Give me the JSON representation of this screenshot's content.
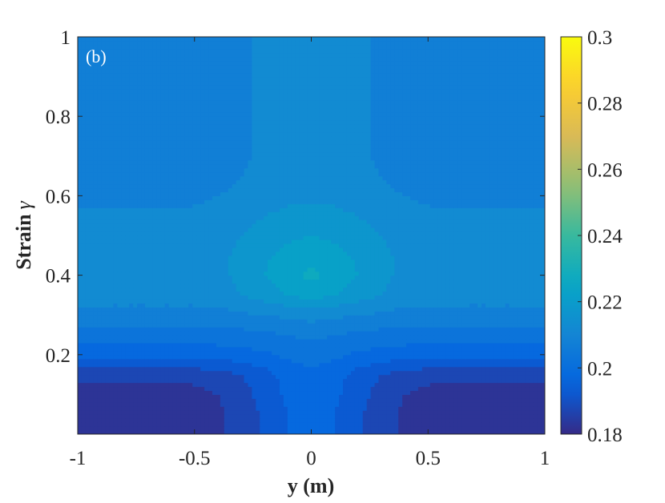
{
  "chart_data": {
    "type": "heatmap",
    "panel_label": "(b)",
    "xlabel": "y (m)",
    "ylabel": "Strain γ",
    "ylabel_parts": {
      "main": "Strain",
      "symbol": "γ"
    },
    "xlim": [
      -1,
      1
    ],
    "ylim": [
      0,
      1
    ],
    "x_ticks": [
      {
        "value": -1,
        "label": "-1"
      },
      {
        "value": -0.5,
        "label": "-0.5"
      },
      {
        "value": 0,
        "label": "0"
      },
      {
        "value": 0.5,
        "label": "0.5"
      },
      {
        "value": 1,
        "label": "1"
      }
    ],
    "y_ticks": [
      {
        "value": 0.2,
        "label": "0.2"
      },
      {
        "value": 0.4,
        "label": "0.4"
      },
      {
        "value": 0.6,
        "label": "0.6"
      },
      {
        "value": 0.8,
        "label": "0.8"
      },
      {
        "value": 1,
        "label": "1"
      }
    ],
    "colorbar": {
      "colormap": "parula",
      "range": [
        0.18,
        0.3
      ],
      "ticks": [
        {
          "value": 0.18,
          "label": "0.18"
        },
        {
          "value": 0.2,
          "label": "0.2"
        },
        {
          "value": 0.22,
          "label": "0.22"
        },
        {
          "value": 0.24,
          "label": "0.24"
        },
        {
          "value": 0.26,
          "label": "0.26"
        },
        {
          "value": 0.28,
          "label": "0.28"
        },
        {
          "value": 0.3,
          "label": "0.3"
        }
      ],
      "placement": "right"
    },
    "contour_levels": [
      0.185,
      0.19,
      0.195,
      0.2,
      0.205,
      0.21,
      0.215,
      0.22,
      0.225,
      0.23
    ],
    "field": {
      "x": [
        -1,
        -0.9,
        -0.8,
        -0.7,
        -0.6,
        -0.5,
        -0.4,
        -0.3,
        -0.2,
        -0.1,
        0,
        0.1,
        0.2,
        0.3,
        0.4,
        0.5,
        0.6,
        0.7,
        0.8,
        0.9,
        1
      ],
      "y": [
        0,
        0.05,
        0.1,
        0.15,
        0.2,
        0.25,
        0.3,
        0.35,
        0.4,
        0.45,
        0.5,
        0.55,
        0.6,
        0.65,
        0.7,
        0.75,
        0.8,
        0.85,
        0.9,
        0.95,
        1
      ],
      "z": [
        [
          0.182,
          0.182,
          0.182,
          0.182,
          0.182,
          0.182,
          0.184,
          0.187,
          0.191,
          0.195,
          0.197,
          0.195,
          0.191,
          0.187,
          0.184,
          0.182,
          0.182,
          0.182,
          0.182,
          0.182,
          0.182
        ],
        [
          0.182,
          0.182,
          0.182,
          0.182,
          0.182,
          0.182,
          0.184,
          0.187,
          0.191,
          0.195,
          0.197,
          0.195,
          0.191,
          0.187,
          0.184,
          0.182,
          0.182,
          0.182,
          0.182,
          0.182,
          0.182
        ],
        [
          0.182,
          0.182,
          0.182,
          0.182,
          0.182,
          0.183,
          0.185,
          0.188,
          0.192,
          0.196,
          0.198,
          0.196,
          0.192,
          0.188,
          0.185,
          0.183,
          0.182,
          0.182,
          0.182,
          0.182,
          0.182
        ],
        [
          0.187,
          0.187,
          0.187,
          0.187,
          0.187,
          0.187,
          0.188,
          0.19,
          0.193,
          0.197,
          0.199,
          0.197,
          0.193,
          0.19,
          0.188,
          0.187,
          0.187,
          0.187,
          0.187,
          0.187,
          0.187
        ],
        [
          0.196,
          0.196,
          0.196,
          0.196,
          0.196,
          0.196,
          0.197,
          0.198,
          0.199,
          0.201,
          0.202,
          0.201,
          0.199,
          0.198,
          0.197,
          0.196,
          0.196,
          0.196,
          0.196,
          0.196,
          0.196
        ],
        [
          0.203,
          0.203,
          0.203,
          0.203,
          0.203,
          0.203,
          0.203,
          0.203,
          0.204,
          0.205,
          0.206,
          0.205,
          0.204,
          0.203,
          0.203,
          0.203,
          0.203,
          0.203,
          0.203,
          0.203,
          0.203
        ],
        [
          0.208,
          0.208,
          0.208,
          0.208,
          0.208,
          0.208,
          0.208,
          0.209,
          0.21,
          0.211,
          0.212,
          0.211,
          0.21,
          0.209,
          0.208,
          0.208,
          0.208,
          0.208,
          0.208,
          0.208,
          0.208
        ],
        [
          0.212,
          0.212,
          0.212,
          0.212,
          0.212,
          0.212,
          0.213,
          0.215,
          0.217,
          0.22,
          0.222,
          0.22,
          0.217,
          0.215,
          0.213,
          0.212,
          0.212,
          0.212,
          0.212,
          0.212,
          0.212
        ],
        [
          0.213,
          0.213,
          0.213,
          0.213,
          0.213,
          0.213,
          0.214,
          0.216,
          0.22,
          0.224,
          0.226,
          0.224,
          0.22,
          0.216,
          0.214,
          0.213,
          0.213,
          0.213,
          0.213,
          0.213,
          0.213
        ],
        [
          0.213,
          0.213,
          0.213,
          0.213,
          0.213,
          0.213,
          0.214,
          0.216,
          0.219,
          0.222,
          0.224,
          0.222,
          0.219,
          0.216,
          0.214,
          0.213,
          0.213,
          0.213,
          0.213,
          0.213,
          0.213
        ],
        [
          0.212,
          0.212,
          0.212,
          0.212,
          0.212,
          0.212,
          0.213,
          0.215,
          0.217,
          0.219,
          0.22,
          0.219,
          0.217,
          0.215,
          0.213,
          0.212,
          0.212,
          0.212,
          0.212,
          0.212,
          0.212
        ],
        [
          0.211,
          0.211,
          0.211,
          0.211,
          0.211,
          0.211,
          0.212,
          0.213,
          0.215,
          0.216,
          0.217,
          0.216,
          0.215,
          0.213,
          0.212,
          0.211,
          0.211,
          0.211,
          0.211,
          0.211,
          0.211
        ],
        [
          0.208,
          0.208,
          0.208,
          0.208,
          0.208,
          0.209,
          0.21,
          0.211,
          0.213,
          0.214,
          0.214,
          0.214,
          0.213,
          0.211,
          0.21,
          0.209,
          0.208,
          0.208,
          0.208,
          0.208,
          0.208
        ],
        [
          0.207,
          0.207,
          0.207,
          0.207,
          0.207,
          0.207,
          0.208,
          0.21,
          0.212,
          0.213,
          0.213,
          0.213,
          0.212,
          0.21,
          0.208,
          0.207,
          0.207,
          0.207,
          0.207,
          0.207,
          0.207
        ],
        [
          0.206,
          0.206,
          0.206,
          0.206,
          0.206,
          0.206,
          0.207,
          0.209,
          0.211,
          0.212,
          0.212,
          0.212,
          0.211,
          0.209,
          0.207,
          0.206,
          0.206,
          0.206,
          0.206,
          0.206,
          0.206
        ],
        [
          0.206,
          0.206,
          0.206,
          0.206,
          0.206,
          0.206,
          0.207,
          0.209,
          0.211,
          0.212,
          0.212,
          0.212,
          0.211,
          0.209,
          0.207,
          0.206,
          0.206,
          0.206,
          0.206,
          0.206,
          0.206
        ],
        [
          0.206,
          0.206,
          0.206,
          0.206,
          0.206,
          0.206,
          0.207,
          0.209,
          0.211,
          0.212,
          0.212,
          0.212,
          0.211,
          0.209,
          0.207,
          0.206,
          0.206,
          0.206,
          0.206,
          0.206,
          0.206
        ],
        [
          0.206,
          0.206,
          0.206,
          0.206,
          0.206,
          0.206,
          0.207,
          0.209,
          0.211,
          0.212,
          0.212,
          0.212,
          0.211,
          0.209,
          0.207,
          0.206,
          0.206,
          0.206,
          0.206,
          0.206,
          0.206
        ],
        [
          0.206,
          0.206,
          0.206,
          0.206,
          0.206,
          0.206,
          0.207,
          0.209,
          0.211,
          0.212,
          0.212,
          0.212,
          0.211,
          0.209,
          0.207,
          0.206,
          0.206,
          0.206,
          0.206,
          0.206,
          0.206
        ],
        [
          0.206,
          0.206,
          0.206,
          0.206,
          0.206,
          0.206,
          0.207,
          0.209,
          0.211,
          0.212,
          0.212,
          0.212,
          0.211,
          0.209,
          0.207,
          0.206,
          0.206,
          0.206,
          0.206,
          0.206,
          0.206
        ],
        [
          0.206,
          0.206,
          0.206,
          0.206,
          0.206,
          0.206,
          0.207,
          0.209,
          0.211,
          0.212,
          0.212,
          0.212,
          0.211,
          0.209,
          0.207,
          0.206,
          0.206,
          0.206,
          0.206,
          0.206,
          0.206
        ]
      ]
    }
  }
}
